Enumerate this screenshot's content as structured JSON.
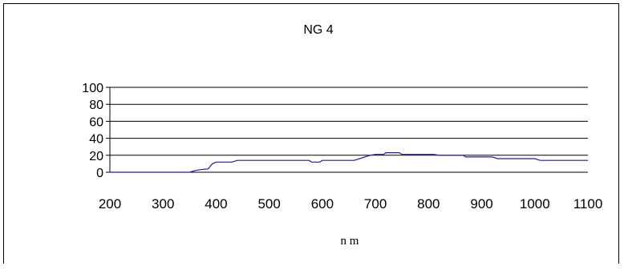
{
  "chart_data": {
    "type": "line",
    "title": "NG 4",
    "xlabel": "n m",
    "ylabel": "",
    "xlim": [
      200,
      1100
    ],
    "ylim": [
      0,
      100
    ],
    "x_ticks": [
      200,
      300,
      400,
      500,
      600,
      700,
      800,
      900,
      1000,
      1100
    ],
    "y_ticks": [
      0,
      20,
      40,
      60,
      80,
      100
    ],
    "grid": true,
    "legend": "none",
    "series_color": "#1f1f8f",
    "series": [
      {
        "x": [
          200,
          350,
          360,
          370,
          385,
          393,
          400,
          430,
          440,
          575,
          580,
          595,
          600,
          660,
          675,
          690,
          700,
          715,
          720,
          745,
          750,
          810,
          820,
          865,
          870,
          920,
          930,
          1000,
          1010,
          1100
        ],
        "y": [
          0,
          0,
          2,
          3,
          4,
          10,
          12,
          12,
          14,
          14,
          12,
          12,
          14,
          14,
          17,
          20,
          21,
          21,
          23,
          23,
          21,
          21,
          20,
          20,
          18,
          18,
          16,
          16,
          14,
          14
        ]
      }
    ]
  }
}
